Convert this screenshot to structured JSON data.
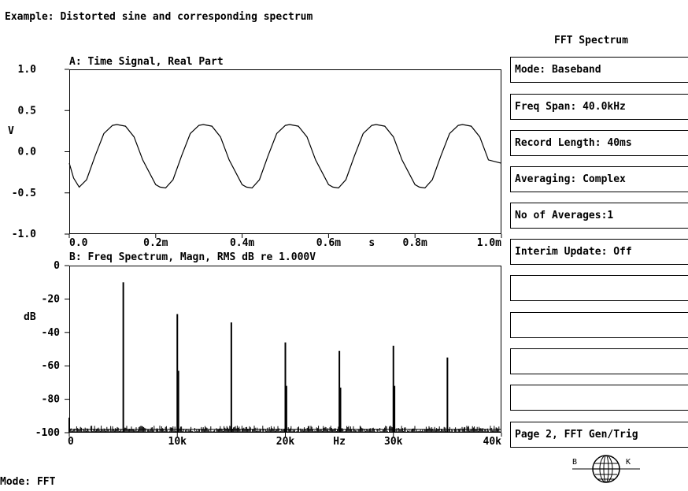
{
  "header": {
    "title": "Example: Distorted sine and corresponding spectrum"
  },
  "panel": {
    "title": "FFT Spectrum",
    "softkeys": [
      "Mode: Baseband",
      "Freq Span: 40.0kHz",
      "Record Length: 40ms",
      "Averaging: Complex",
      "No of Averages:1",
      "Interim Update: Off",
      "",
      "",
      "",
      "",
      "Page 2, FFT Gen/Trig"
    ],
    "logo": {
      "left_letter": "B",
      "right_letter": "K"
    }
  },
  "footer": {
    "mode": "Mode: FFT"
  },
  "chart_data": [
    {
      "type": "line",
      "title": "A: Time Signal, Real Part",
      "ylabel": "V",
      "xunit": "s",
      "ylim": [
        -1.0,
        1.0
      ],
      "xlim": [
        0,
        1.0
      ],
      "x_ticks": [
        "0.0",
        "0.2m",
        "0.4m",
        "0.6m",
        "0.8m",
        "1.0m"
      ],
      "y_ticks": [
        "1.0",
        "0.5",
        "0.0",
        "-0.5",
        "-1.0"
      ],
      "grid": false,
      "signal": {
        "period_ms": 0.2,
        "max": 0.33,
        "min": -0.44,
        "start_value": -0.14,
        "description_values": {
          "first_min_x_ms": 0.023,
          "first_max_x_ms": 0.11
        }
      },
      "series": [
        {
          "x": [
            0.0,
            0.01,
            0.023,
            0.04,
            0.06,
            0.08,
            0.1,
            0.11,
            0.13,
            0.15,
            0.17,
            0.2,
            0.21,
            0.223,
            0.24,
            0.26,
            0.28,
            0.3,
            0.31,
            0.33,
            0.35,
            0.37,
            0.4,
            0.41,
            0.423,
            0.44,
            0.46,
            0.48,
            0.5,
            0.51,
            0.53,
            0.55,
            0.57,
            0.6,
            0.61,
            0.623,
            0.64,
            0.66,
            0.68,
            0.7,
            0.71,
            0.73,
            0.75,
            0.77,
            0.8,
            0.81,
            0.823,
            0.84,
            0.86,
            0.88,
            0.9,
            0.91,
            0.93,
            0.95,
            0.97,
            1.0
          ],
          "y": [
            -0.14,
            -0.32,
            -0.43,
            -0.34,
            -0.05,
            0.22,
            0.32,
            0.33,
            0.31,
            0.18,
            -0.1,
            -0.4,
            -0.43,
            -0.44,
            -0.34,
            -0.05,
            0.22,
            0.32,
            0.33,
            0.31,
            0.18,
            -0.1,
            -0.4,
            -0.43,
            -0.44,
            -0.34,
            -0.05,
            0.22,
            0.32,
            0.33,
            0.31,
            0.18,
            -0.1,
            -0.4,
            -0.43,
            -0.44,
            -0.34,
            -0.05,
            0.22,
            0.32,
            0.33,
            0.31,
            0.18,
            -0.1,
            -0.4,
            -0.43,
            -0.44,
            -0.34,
            -0.05,
            0.22,
            0.32,
            0.33,
            0.31,
            0.18,
            -0.1,
            -0.14
          ]
        }
      ]
    },
    {
      "type": "bar",
      "title": "B: Freq Spectrum, Magn, RMS dB re 1.000V",
      "ylabel": "dB",
      "xunit": "Hz",
      "ylim": [
        -100,
        0
      ],
      "xlim": [
        0,
        40
      ],
      "x_ticks": [
        "0",
        "10k",
        "20k",
        "30k",
        "40k"
      ],
      "y_ticks": [
        "0",
        "-20",
        "-40",
        "-60",
        "-80",
        "-100"
      ],
      "grid": false,
      "noise_floor_db": -98,
      "series": [
        {
          "x_khz": [
            0.0,
            5.0,
            10.0,
            10.1,
            15.0,
            20.0,
            20.1,
            25.0,
            25.1,
            30.0,
            30.1,
            35.0
          ],
          "values_db": [
            -91,
            -10,
            -29,
            -63,
            -34,
            -46,
            -72,
            -51,
            -73,
            -48,
            -72,
            -55
          ]
        }
      ]
    }
  ]
}
